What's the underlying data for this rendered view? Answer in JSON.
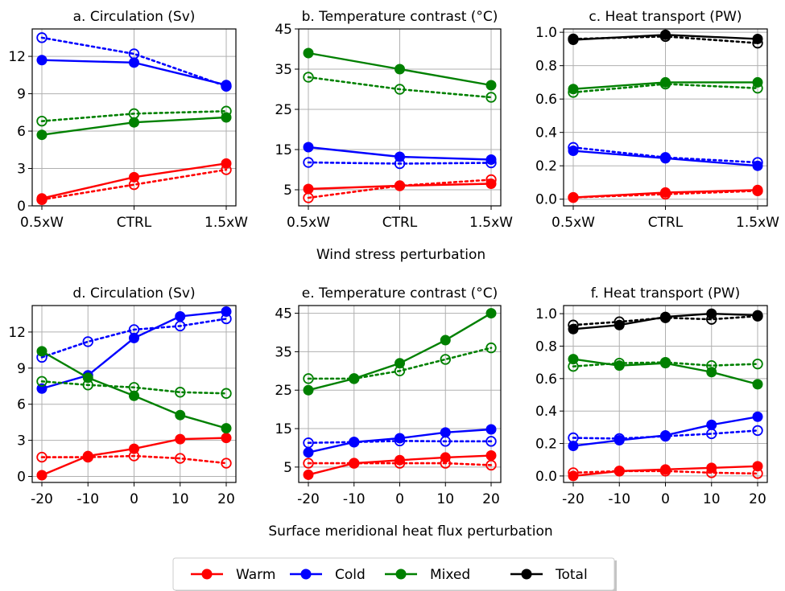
{
  "figure": {
    "top_xlabel": "Wind stress perturbation",
    "bottom_xlabel": "Surface meridional heat flux perturbation"
  },
  "legend": {
    "items": [
      {
        "label": "Warm",
        "color": "#ff0000"
      },
      {
        "label": "Cold",
        "color": "#0000ff"
      },
      {
        "label": "Mixed",
        "color": "#008000"
      },
      {
        "label": "Total",
        "color": "#000000"
      }
    ]
  },
  "chart_data": [
    {
      "type": "line",
      "title": "a. Circulation (Sv)",
      "categories": [
        "0.5xW",
        "CTRL",
        "1.5xW"
      ],
      "ylim": [
        0,
        14.2
      ],
      "yticks": [
        0,
        3,
        6,
        9,
        12
      ],
      "ytick_labels": [
        "0",
        "3",
        "6",
        "9",
        "12"
      ],
      "grid": true,
      "series": [
        {
          "name": "Warm",
          "color": "#ff0000",
          "solid": [
            0.6,
            2.3,
            3.4
          ],
          "dotted": [
            0.5,
            1.7,
            2.9
          ]
        },
        {
          "name": "Cold",
          "color": "#0000ff",
          "solid": [
            11.7,
            11.5,
            9.7
          ],
          "dotted": [
            13.5,
            12.2,
            9.6
          ]
        },
        {
          "name": "Mixed",
          "color": "#008000",
          "solid": [
            5.7,
            6.7,
            7.1
          ],
          "dotted": [
            6.8,
            7.4,
            7.6
          ]
        }
      ]
    },
    {
      "type": "line",
      "title": "b. Temperature contrast (°C)",
      "categories": [
        "0.5xW",
        "CTRL",
        "1.5xW"
      ],
      "ylim": [
        1,
        45
      ],
      "yticks": [
        5,
        15,
        25,
        35,
        45
      ],
      "ytick_labels": [
        "5",
        "15",
        "25",
        "35",
        "45"
      ],
      "grid": true,
      "series": [
        {
          "name": "Warm",
          "color": "#ff0000",
          "solid": [
            5.2,
            6,
            6.5
          ],
          "dotted": [
            3,
            6,
            7.5
          ]
        },
        {
          "name": "Cold",
          "color": "#0000ff",
          "solid": [
            15.6,
            13.2,
            12.5
          ],
          "dotted": [
            11.8,
            11.5,
            11.7
          ]
        },
        {
          "name": "Mixed",
          "color": "#008000",
          "solid": [
            39,
            35,
            31
          ],
          "dotted": [
            33,
            30,
            28
          ]
        }
      ]
    },
    {
      "type": "line",
      "title": "c. Heat transport (PW)",
      "categories": [
        "0.5xW",
        "CTRL",
        "1.5xW"
      ],
      "ylim": [
        -0.04,
        1.02
      ],
      "yticks": [
        0,
        0.2,
        0.4,
        0.6,
        0.8,
        1.0
      ],
      "ytick_labels": [
        "0.0",
        "0.2",
        "0.4",
        "0.6",
        "0.8",
        "1.0"
      ],
      "grid": true,
      "series": [
        {
          "name": "Warm",
          "color": "#ff0000",
          "solid": [
            0.01,
            0.04,
            0.055
          ],
          "dotted": [
            0.01,
            0.03,
            0.05
          ]
        },
        {
          "name": "Cold",
          "color": "#0000ff",
          "solid": [
            0.29,
            0.245,
            0.2
          ],
          "dotted": [
            0.31,
            0.25,
            0.22
          ]
        },
        {
          "name": "Mixed",
          "color": "#008000",
          "solid": [
            0.66,
            0.7,
            0.7
          ],
          "dotted": [
            0.64,
            0.69,
            0.665
          ]
        },
        {
          "name": "Total",
          "color": "#000000",
          "solid": [
            0.955,
            0.985,
            0.96
          ],
          "dotted": [
            0.96,
            0.975,
            0.935
          ]
        }
      ]
    },
    {
      "type": "line",
      "title": "d. Circulation (Sv)",
      "categories": [
        "-20",
        "-10",
        "0",
        "10",
        "20"
      ],
      "ylim": [
        -0.5,
        14.2
      ],
      "yticks": [
        0,
        3,
        6,
        9,
        12
      ],
      "ytick_labels": [
        "0",
        "3",
        "6",
        "9",
        "12"
      ],
      "grid": true,
      "series": [
        {
          "name": "Warm",
          "color": "#ff0000",
          "solid": [
            0.1,
            1.7,
            2.3,
            3.1,
            3.2
          ],
          "dotted": [
            1.6,
            1.6,
            1.7,
            1.5,
            1.1
          ]
        },
        {
          "name": "Cold",
          "color": "#0000ff",
          "solid": [
            7.3,
            8.4,
            11.5,
            13.3,
            13.7
          ],
          "dotted": [
            9.9,
            11.2,
            12.2,
            12.5,
            13.1
          ]
        },
        {
          "name": "Mixed",
          "color": "#008000",
          "solid": [
            10.4,
            8.2,
            6.7,
            5.1,
            4.0
          ],
          "dotted": [
            7.9,
            7.6,
            7.4,
            7.0,
            6.9
          ]
        }
      ]
    },
    {
      "type": "line",
      "title": "e. Temperature contrast (°C)",
      "categories": [
        "-20",
        "-10",
        "0",
        "10",
        "20"
      ],
      "ylim": [
        1,
        47
      ],
      "yticks": [
        5,
        15,
        25,
        35,
        45
      ],
      "ytick_labels": [
        "5",
        "15",
        "25",
        "35",
        "45"
      ],
      "grid": true,
      "series": [
        {
          "name": "Warm",
          "color": "#ff0000",
          "solid": [
            3,
            6,
            6.8,
            7.5,
            8
          ],
          "dotted": [
            6,
            6,
            6,
            6,
            5.5
          ]
        },
        {
          "name": "Cold",
          "color": "#0000ff",
          "solid": [
            8.8,
            11.5,
            12.5,
            14,
            14.8
          ],
          "dotted": [
            11.3,
            11.5,
            11.8,
            11.7,
            11.7
          ]
        },
        {
          "name": "Mixed",
          "color": "#008000",
          "solid": [
            25,
            28,
            32,
            38,
            45
          ],
          "dotted": [
            28,
            28,
            30,
            33,
            36
          ]
        }
      ]
    },
    {
      "type": "line",
      "title": "f. Heat transport (PW)",
      "categories": [
        "-20",
        "-10",
        "0",
        "10",
        "20"
      ],
      "ylim": [
        -0.04,
        1.05
      ],
      "yticks": [
        0,
        0.2,
        0.4,
        0.6,
        0.8,
        1.0
      ],
      "ytick_labels": [
        "0.0",
        "0.2",
        "0.4",
        "0.6",
        "0.8",
        "1.0"
      ],
      "grid": true,
      "series": [
        {
          "name": "Warm",
          "color": "#ff0000",
          "solid": [
            0.0,
            0.03,
            0.04,
            0.05,
            0.06
          ],
          "dotted": [
            0.02,
            0.03,
            0.03,
            0.02,
            0.015
          ]
        },
        {
          "name": "Cold",
          "color": "#0000ff",
          "solid": [
            0.185,
            0.22,
            0.25,
            0.315,
            0.365
          ],
          "dotted": [
            0.235,
            0.23,
            0.245,
            0.26,
            0.28
          ]
        },
        {
          "name": "Mixed",
          "color": "#008000",
          "solid": [
            0.72,
            0.68,
            0.695,
            0.64,
            0.565
          ],
          "dotted": [
            0.675,
            0.695,
            0.7,
            0.68,
            0.69
          ]
        },
        {
          "name": "Total",
          "color": "#000000",
          "solid": [
            0.905,
            0.93,
            0.98,
            1.0,
            0.99
          ],
          "dotted": [
            0.93,
            0.95,
            0.975,
            0.965,
            0.985
          ]
        }
      ]
    }
  ]
}
